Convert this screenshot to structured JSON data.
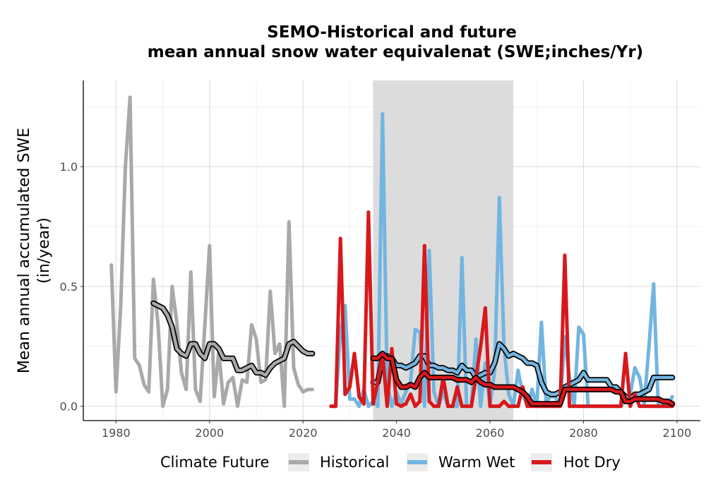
{
  "chart_data": {
    "type": "line",
    "title_lines": [
      "SEMO-Historical and future",
      "mean annual snow water equivalenat (SWE;inches/Yr)"
    ],
    "xlabel": "",
    "ylabel_lines": [
      "Mean annual accumulated SWE",
      "(in/year)"
    ],
    "xlim": [
      1973,
      2105
    ],
    "ylim": [
      -0.06,
      1.36
    ],
    "x_ticks": [
      1980,
      2000,
      2020,
      2040,
      2060,
      2080,
      2100
    ],
    "y_ticks": [
      0.0,
      0.5,
      1.0
    ],
    "y_tick_labels": [
      "0.0",
      "0.5",
      "1.0"
    ],
    "grid": true,
    "shaded_period": {
      "x_start": 2035,
      "x_end": 2065,
      "color": "#dcdcdc"
    },
    "legend": {
      "title": "Climate Future",
      "placement": "bottom",
      "entries": [
        {
          "label": "Historical",
          "color": "#a9a9a9"
        },
        {
          "label": "Warm Wet",
          "color": "#73b5e0"
        },
        {
          "label": "Hot Dry",
          "color": "#d7191c"
        }
      ]
    },
    "series": [
      {
        "name": "Historical",
        "color": "#a9a9a9",
        "x": [
          1979,
          1980,
          1981,
          1982,
          1983,
          1984,
          1985,
          1986,
          1987,
          1988,
          1989,
          1990,
          1991,
          1992,
          1993,
          1994,
          1995,
          1996,
          1997,
          1998,
          1999,
          2000,
          2001,
          2002,
          2003,
          2004,
          2005,
          2006,
          2007,
          2008,
          2009,
          2010,
          2011,
          2012,
          2013,
          2014,
          2015,
          2016,
          2017,
          2018,
          2019,
          2020,
          2021,
          2022
        ],
        "y": [
          0.59,
          0.06,
          0.42,
          1.0,
          1.29,
          0.2,
          0.17,
          0.09,
          0.06,
          0.53,
          0.34,
          0.0,
          0.07,
          0.5,
          0.35,
          0.14,
          0.07,
          0.56,
          0.07,
          0.02,
          0.34,
          0.67,
          0.04,
          0.23,
          0.01,
          0.1,
          0.12,
          0.0,
          0.11,
          0.1,
          0.34,
          0.28,
          0.1,
          0.11,
          0.48,
          0.22,
          0.26,
          0.0,
          0.77,
          0.16,
          0.09,
          0.06,
          0.07,
          0.07
        ]
      },
      {
        "name": "Historical-smooth",
        "color": "#a9a9a9",
        "x": [
          1988,
          1989,
          1990,
          1991,
          1992,
          1993,
          1994,
          1995,
          1996,
          1997,
          1998,
          1999,
          2000,
          2001,
          2002,
          2003,
          2004,
          2005,
          2006,
          2007,
          2008,
          2009,
          2010,
          2011,
          2012,
          2013,
          2014,
          2015,
          2016,
          2017,
          2018,
          2019,
          2020,
          2021,
          2022
        ],
        "y": [
          0.43,
          0.42,
          0.41,
          0.38,
          0.33,
          0.24,
          0.22,
          0.21,
          0.26,
          0.26,
          0.22,
          0.2,
          0.26,
          0.26,
          0.24,
          0.2,
          0.2,
          0.2,
          0.15,
          0.15,
          0.16,
          0.17,
          0.14,
          0.14,
          0.13,
          0.16,
          0.18,
          0.19,
          0.2,
          0.26,
          0.27,
          0.25,
          0.23,
          0.22,
          0.22
        ]
      },
      {
        "name": "Warm Wet",
        "color": "#73b5e0",
        "x": [
          2026,
          2027,
          2028,
          2029,
          2030,
          2031,
          2032,
          2033,
          2034,
          2035,
          2036,
          2037,
          2038,
          2039,
          2040,
          2041,
          2042,
          2043,
          2044,
          2045,
          2046,
          2047,
          2048,
          2049,
          2050,
          2051,
          2052,
          2053,
          2054,
          2055,
          2056,
          2057,
          2058,
          2059,
          2060,
          2061,
          2062,
          2063,
          2064,
          2065,
          2066,
          2067,
          2068,
          2069,
          2070,
          2071,
          2072,
          2073,
          2074,
          2075,
          2076,
          2077,
          2078,
          2079,
          2080,
          2081,
          2082,
          2083,
          2084,
          2085,
          2086,
          2087,
          2088,
          2089,
          2090,
          2091,
          2092,
          2093,
          2094,
          2095,
          2096,
          2097,
          2098,
          2099
        ],
        "y": [
          0.0,
          0.0,
          0.31,
          0.42,
          0.03,
          0.03,
          0.0,
          0.07,
          0.0,
          0.02,
          0.0,
          1.22,
          0.09,
          0.0,
          0.06,
          0.01,
          0.06,
          0.1,
          0.32,
          0.31,
          0.0,
          0.65,
          0.06,
          0.0,
          0.06,
          0.0,
          0.0,
          0.0,
          0.62,
          0.0,
          0.0,
          0.28,
          0.0,
          0.18,
          0.0,
          0.15,
          0.87,
          0.25,
          0.05,
          0.0,
          0.15,
          0.05,
          0.0,
          0.07,
          0.0,
          0.35,
          0.02,
          0.04,
          0.04,
          0.0,
          0.29,
          0.12,
          0.0,
          0.33,
          0.3,
          0.0,
          0.0,
          0.0,
          0.0,
          0.0,
          0.0,
          0.0,
          0.0,
          0.03,
          0.05,
          0.16,
          0.12,
          0.01,
          0.25,
          0.51,
          0.0,
          0.0,
          0.0,
          0.04
        ]
      },
      {
        "name": "Warm Wet-smooth",
        "color": "#73b5e0",
        "x": [
          2035,
          2036,
          2037,
          2038,
          2039,
          2040,
          2041,
          2042,
          2043,
          2044,
          2045,
          2046,
          2047,
          2048,
          2049,
          2050,
          2051,
          2052,
          2053,
          2054,
          2055,
          2056,
          2057,
          2058,
          2059,
          2060,
          2061,
          2062,
          2063,
          2064,
          2065,
          2066,
          2067,
          2068,
          2069,
          2070,
          2071,
          2072,
          2073,
          2074,
          2075,
          2076,
          2077,
          2078,
          2079,
          2080,
          2081,
          2082,
          2083,
          2084,
          2085,
          2086,
          2087,
          2088,
          2089,
          2090,
          2091,
          2092,
          2093,
          2094,
          2095,
          2096,
          2097,
          2098,
          2099
        ],
        "y": [
          0.1,
          0.1,
          0.2,
          0.21,
          0.2,
          0.17,
          0.17,
          0.16,
          0.17,
          0.18,
          0.21,
          0.21,
          0.17,
          0.17,
          0.16,
          0.16,
          0.15,
          0.15,
          0.14,
          0.17,
          0.15,
          0.15,
          0.12,
          0.13,
          0.14,
          0.14,
          0.18,
          0.26,
          0.24,
          0.21,
          0.22,
          0.21,
          0.2,
          0.18,
          0.18,
          0.17,
          0.1,
          0.06,
          0.05,
          0.05,
          0.06,
          0.08,
          0.09,
          0.1,
          0.11,
          0.14,
          0.11,
          0.11,
          0.11,
          0.11,
          0.11,
          0.08,
          0.08,
          0.06,
          0.04,
          0.03,
          0.05,
          0.05,
          0.06,
          0.07,
          0.12,
          0.12,
          0.12,
          0.12,
          0.12
        ]
      },
      {
        "name": "Hot Dry",
        "color": "#d7191c",
        "x": [
          2026,
          2027,
          2028,
          2029,
          2030,
          2031,
          2032,
          2033,
          2034,
          2035,
          2036,
          2037,
          2038,
          2039,
          2040,
          2041,
          2042,
          2043,
          2044,
          2045,
          2046,
          2047,
          2048,
          2049,
          2050,
          2051,
          2052,
          2053,
          2054,
          2055,
          2056,
          2057,
          2058,
          2059,
          2060,
          2061,
          2062,
          2063,
          2064,
          2065,
          2066,
          2067,
          2068,
          2069,
          2070,
          2071,
          2072,
          2073,
          2074,
          2075,
          2076,
          2077,
          2078,
          2079,
          2080,
          2081,
          2082,
          2083,
          2084,
          2085,
          2086,
          2087,
          2088,
          2089,
          2090,
          2091,
          2092,
          2093,
          2094,
          2095,
          2096,
          2097,
          2098,
          2099
        ],
        "y": [
          0.0,
          0.0,
          0.7,
          0.05,
          0.08,
          0.22,
          0.04,
          0.01,
          0.81,
          0.01,
          0.1,
          0.22,
          0.0,
          0.24,
          0.01,
          0.0,
          0.01,
          0.05,
          0.0,
          0.02,
          0.67,
          0.02,
          0.0,
          0.0,
          0.12,
          0.0,
          0.0,
          0.08,
          0.0,
          0.0,
          0.0,
          0.12,
          0.25,
          0.41,
          0.0,
          0.0,
          0.0,
          0.02,
          0.0,
          0.0,
          0.0,
          0.08,
          0.0,
          0.0,
          0.0,
          0.0,
          0.0,
          0.0,
          0.0,
          0.0,
          0.63,
          0.0,
          0.0,
          0.0,
          0.0,
          0.0,
          0.0,
          0.0,
          0.0,
          0.0,
          0.0,
          0.0,
          0.0,
          0.22,
          0.0,
          0.05,
          0.0,
          0.0,
          0.0,
          0.0,
          0.0,
          0.0,
          0.0,
          0.0
        ]
      },
      {
        "name": "Hot Dry-smooth",
        "color": "#d7191c",
        "x": [
          2035,
          2036,
          2037,
          2038,
          2039,
          2040,
          2041,
          2042,
          2043,
          2044,
          2045,
          2046,
          2047,
          2048,
          2049,
          2050,
          2051,
          2052,
          2053,
          2054,
          2055,
          2056,
          2057,
          2058,
          2059,
          2060,
          2061,
          2062,
          2063,
          2064,
          2065,
          2066,
          2067,
          2068,
          2069,
          2070,
          2071,
          2072,
          2073,
          2074,
          2075,
          2076,
          2077,
          2078,
          2079,
          2080,
          2081,
          2082,
          2083,
          2084,
          2085,
          2086,
          2087,
          2088,
          2089,
          2090,
          2091,
          2092,
          2093,
          2094,
          2095,
          2096,
          2097,
          2098,
          2099
        ],
        "y": [
          0.2,
          0.2,
          0.22,
          0.2,
          0.2,
          0.11,
          0.08,
          0.08,
          0.09,
          0.08,
          0.12,
          0.14,
          0.12,
          0.12,
          0.12,
          0.12,
          0.12,
          0.12,
          0.11,
          0.11,
          0.11,
          0.1,
          0.12,
          0.1,
          0.09,
          0.09,
          0.08,
          0.08,
          0.08,
          0.08,
          0.08,
          0.07,
          0.06,
          0.04,
          0.01,
          0.01,
          0.01,
          0.01,
          0.01,
          0.01,
          0.01,
          0.07,
          0.07,
          0.07,
          0.07,
          0.07,
          0.07,
          0.07,
          0.07,
          0.07,
          0.07,
          0.07,
          0.06,
          0.06,
          0.02,
          0.02,
          0.03,
          0.03,
          0.03,
          0.03,
          0.03,
          0.03,
          0.02,
          0.02,
          0.01
        ]
      }
    ]
  }
}
